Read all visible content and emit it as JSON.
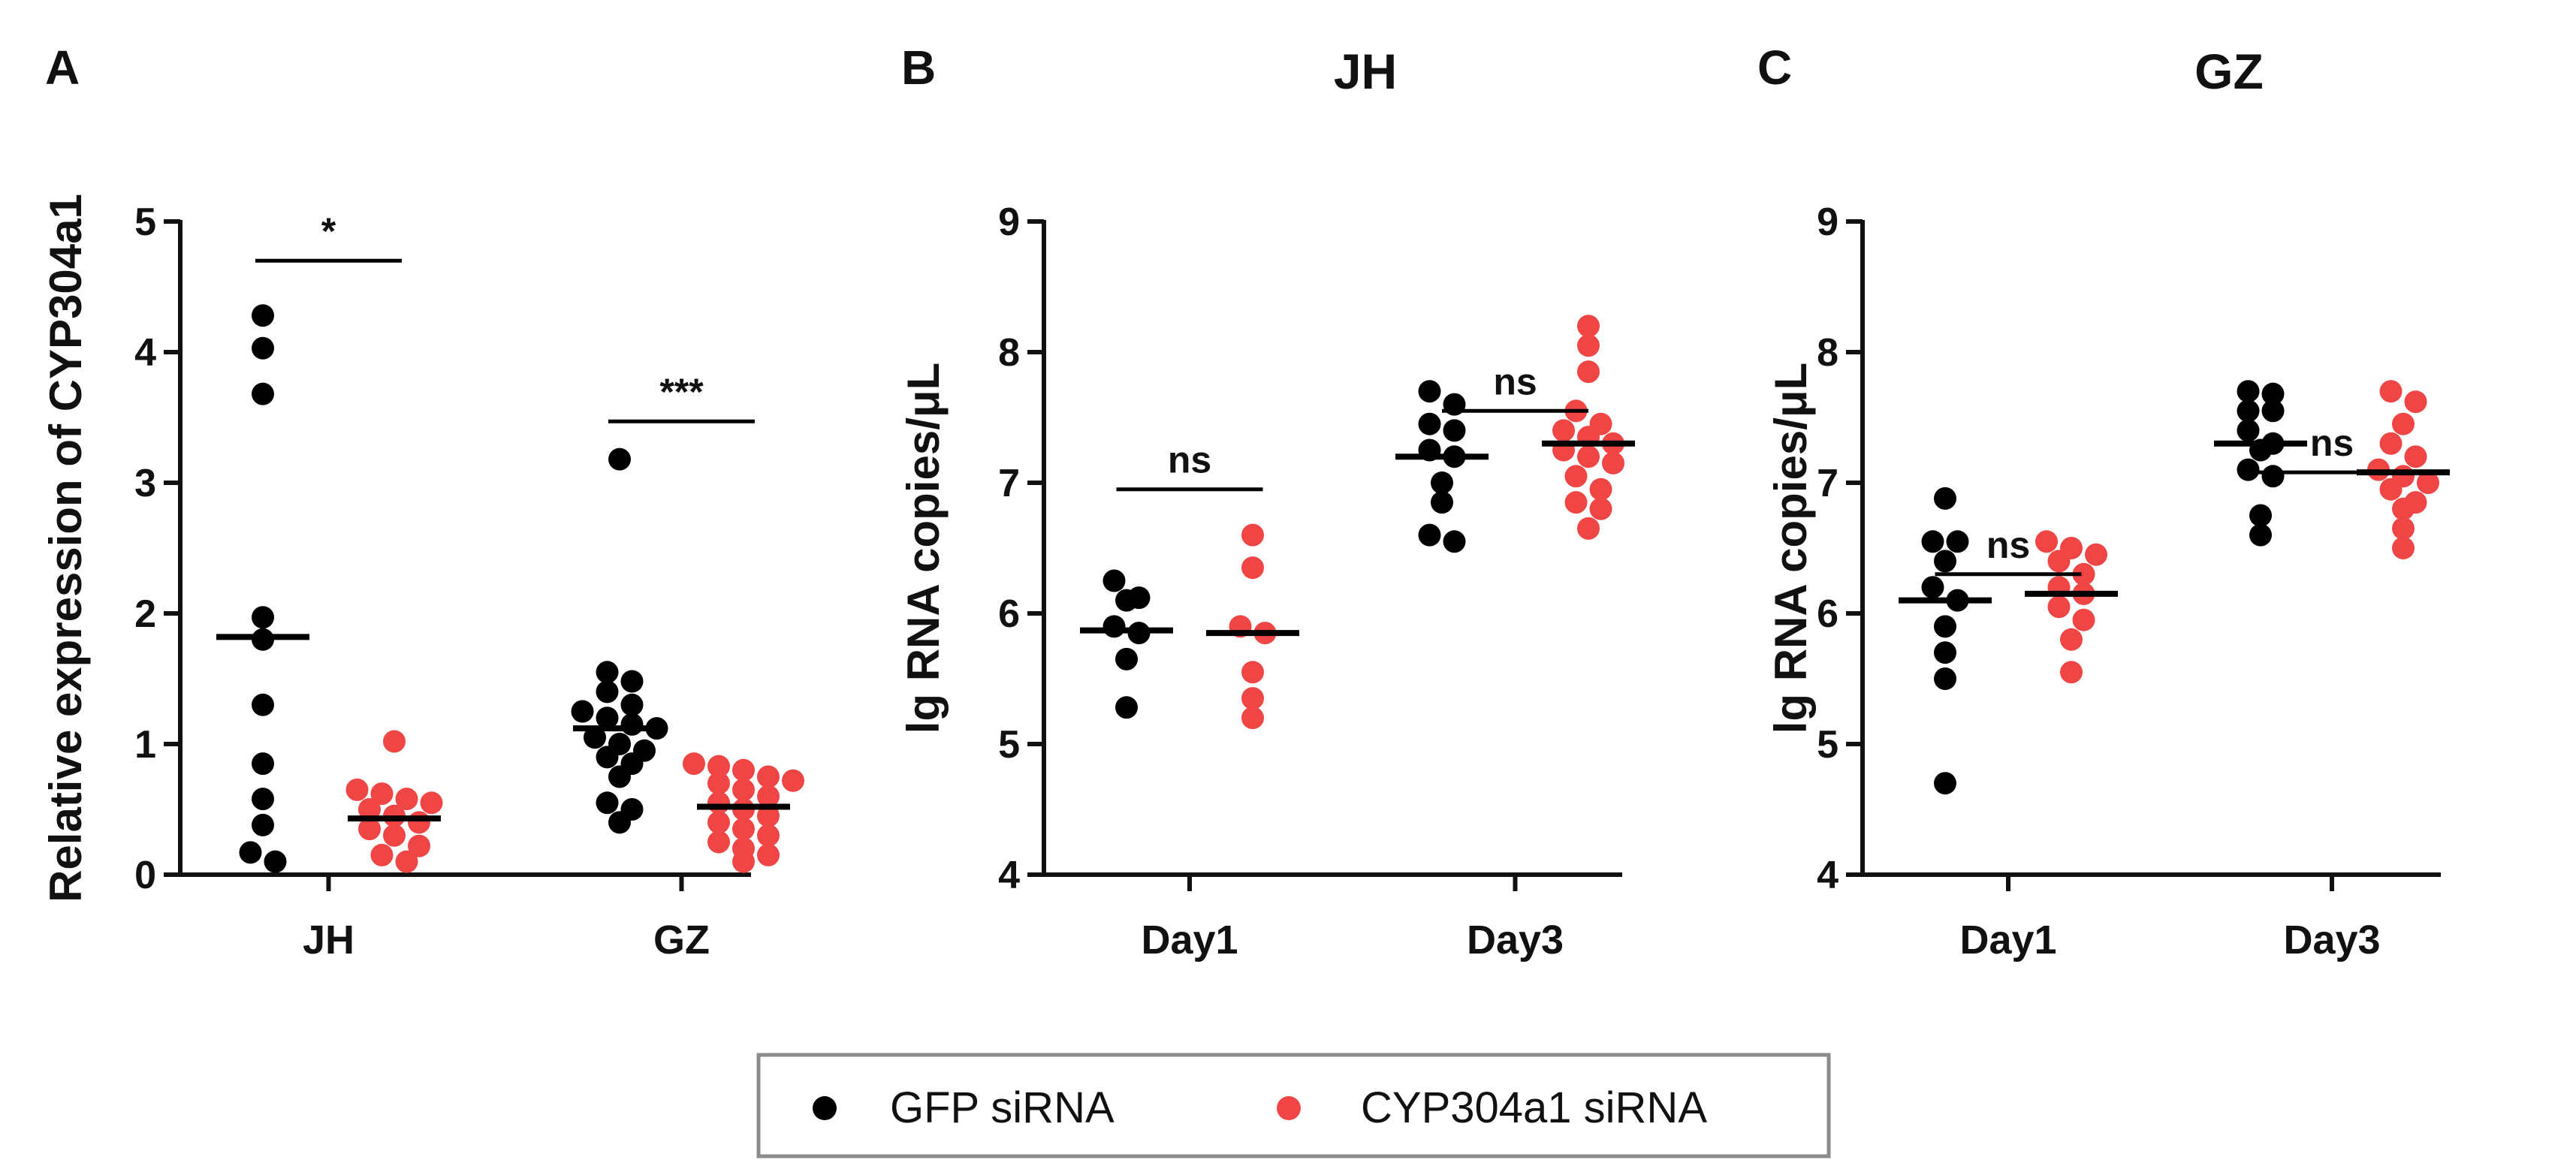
{
  "legend": {
    "items": [
      {
        "label": "GFP siRNA",
        "color": "#000000"
      },
      {
        "label": "CYP304a1 siRNA",
        "color": "#f04545"
      }
    ],
    "placement": "bottom-center"
  },
  "chart_data": [
    {
      "panel": "A",
      "type": "scatter",
      "title": "",
      "xlabel": "",
      "ylabel": "Relative expression of CYP304a1",
      "ylim": [
        0,
        5
      ],
      "yticks": [
        "0",
        "1",
        "2",
        "3",
        "4",
        "5"
      ],
      "categories": [
        "JH",
        "GZ"
      ],
      "series": [
        {
          "name": "GFP siRNA",
          "color": "#000000",
          "groups": [
            {
              "category": "JH",
              "mean": 1.82,
              "values": [
                4.28,
                4.03,
                3.68,
                1.97,
                1.8,
                1.3,
                0.85,
                0.58,
                0.38,
                0.17,
                0.1
              ]
            },
            {
              "category": "GZ",
              "mean": 1.12,
              "values": [
                3.18,
                1.55,
                1.48,
                1.4,
                1.3,
                1.25,
                1.2,
                1.15,
                1.12,
                1.05,
                1.0,
                0.95,
                0.9,
                0.85,
                0.75,
                0.55,
                0.5,
                0.4
              ]
            }
          ]
        },
        {
          "name": "CYP304a1 siRNA",
          "color": "#f04545",
          "groups": [
            {
              "category": "JH",
              "mean": 0.43,
              "values": [
                1.02,
                0.65,
                0.62,
                0.58,
                0.55,
                0.5,
                0.45,
                0.4,
                0.35,
                0.3,
                0.22,
                0.15,
                0.1
              ]
            },
            {
              "category": "GZ",
              "mean": 0.52,
              "values": [
                0.85,
                0.83,
                0.8,
                0.75,
                0.72,
                0.7,
                0.65,
                0.6,
                0.55,
                0.5,
                0.45,
                0.4,
                0.35,
                0.3,
                0.25,
                0.2,
                0.15,
                0.1
              ]
            }
          ]
        }
      ],
      "significance": [
        {
          "category": "JH",
          "label": "*",
          "level": 4.7
        },
        {
          "category": "GZ",
          "label": "***",
          "level": 3.47
        }
      ]
    },
    {
      "panel": "B",
      "type": "scatter",
      "title": "JH",
      "xlabel": "",
      "ylabel": "lg RNA copies/μL",
      "ylim": [
        4,
        9
      ],
      "yticks": [
        "4",
        "5",
        "6",
        "7",
        "8",
        "9"
      ],
      "categories": [
        "Day1",
        "Day3"
      ],
      "series": [
        {
          "name": "GFP siRNA",
          "color": "#000000",
          "groups": [
            {
              "category": "Day1",
              "mean": 5.87,
              "values": [
                6.25,
                6.12,
                6.1,
                5.9,
                5.85,
                5.65,
                5.28
              ]
            },
            {
              "category": "Day3",
              "mean": 7.2,
              "values": [
                7.7,
                7.6,
                7.45,
                7.4,
                7.25,
                7.2,
                7.0,
                6.85,
                6.6,
                6.55
              ]
            }
          ]
        },
        {
          "name": "CYP304a1 siRNA",
          "color": "#f04545",
          "groups": [
            {
              "category": "Day1",
              "mean": 5.85,
              "values": [
                6.6,
                6.35,
                5.9,
                5.85,
                5.55,
                5.35,
                5.2
              ]
            },
            {
              "category": "Day3",
              "mean": 7.3,
              "values": [
                8.2,
                8.05,
                7.85,
                7.55,
                7.45,
                7.4,
                7.35,
                7.3,
                7.25,
                7.2,
                7.15,
                7.05,
                6.95,
                6.85,
                6.8,
                6.65
              ]
            }
          ]
        }
      ],
      "significance": [
        {
          "category": "Day1",
          "label": "ns",
          "level": 6.95
        },
        {
          "category": "Day3",
          "label": "ns",
          "level": 7.55
        }
      ]
    },
    {
      "panel": "C",
      "type": "scatter",
      "title": "GZ",
      "xlabel": "",
      "ylabel": "lg RNA copies/μL",
      "ylim": [
        4,
        9
      ],
      "yticks": [
        "4",
        "5",
        "6",
        "7",
        "8",
        "9"
      ],
      "categories": [
        "Day1",
        "Day3"
      ],
      "series": [
        {
          "name": "GFP siRNA",
          "color": "#000000",
          "groups": [
            {
              "category": "Day1",
              "mean": 6.1,
              "values": [
                6.88,
                6.55,
                6.55,
                6.4,
                6.2,
                6.1,
                5.9,
                5.7,
                5.5,
                4.7
              ]
            },
            {
              "category": "Day3",
              "mean": 7.3,
              "values": [
                7.7,
                7.68,
                7.55,
                7.55,
                7.4,
                7.3,
                7.25,
                7.1,
                7.05,
                6.75,
                6.6
              ]
            }
          ]
        },
        {
          "name": "CYP304a1 siRNA",
          "color": "#f04545",
          "groups": [
            {
              "category": "Day1",
              "mean": 6.15,
              "values": [
                6.55,
                6.5,
                6.45,
                6.4,
                6.3,
                6.2,
                6.15,
                6.05,
                5.95,
                5.8,
                5.55
              ]
            },
            {
              "category": "Day3",
              "mean": 7.08,
              "values": [
                7.7,
                7.62,
                7.45,
                7.3,
                7.2,
                7.1,
                7.05,
                7.0,
                6.95,
                6.85,
                6.8,
                6.65,
                6.5
              ]
            }
          ]
        }
      ],
      "significance": [
        {
          "category": "Day1",
          "label": "ns",
          "level": 6.3
        },
        {
          "category": "Day3",
          "label": "ns",
          "level": 7.08
        }
      ]
    }
  ]
}
